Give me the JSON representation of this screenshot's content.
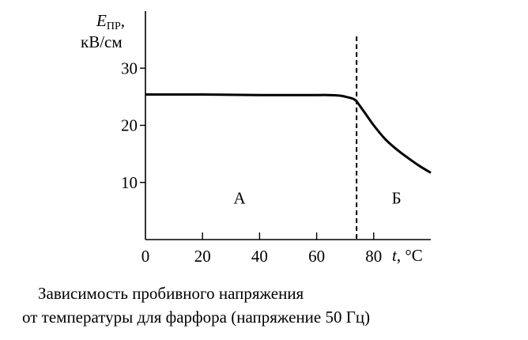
{
  "chart_data": {
    "type": "line",
    "xlabel_var": "t",
    "xlabel_unit": ", °C",
    "ylabel_var": "E",
    "ylabel_sub": "ПР",
    "ylabel_comma": ",",
    "ylabel_unit": "кВ/см",
    "x_ticks": [
      0,
      20,
      40,
      60,
      80
    ],
    "y_ticks": [
      10,
      20,
      30
    ],
    "xlim": [
      0,
      100
    ],
    "ylim": [
      0,
      40
    ],
    "grid": false,
    "series": [
      {
        "x": [
          0,
          20,
          40,
          60,
          64,
          68,
          71,
          73,
          74,
          76,
          78,
          80,
          84,
          88,
          92,
          96,
          100
        ],
        "y": [
          25.4,
          25.4,
          25.3,
          25.3,
          25.3,
          25.2,
          24.9,
          24.6,
          24.2,
          22.8,
          21.4,
          20.0,
          17.6,
          15.8,
          14.3,
          12.9,
          11.7
        ]
      }
    ],
    "threshold_x": 74,
    "regions": [
      {
        "label": "А",
        "x": 33,
        "y": 6.3
      },
      {
        "label": "Б",
        "x": 88,
        "y": 6.3
      }
    ]
  },
  "caption": {
    "line1": "Зависимость пробивного напряжения",
    "line2": "от температуры для фарфора (напряжение 50 Гц)"
  }
}
